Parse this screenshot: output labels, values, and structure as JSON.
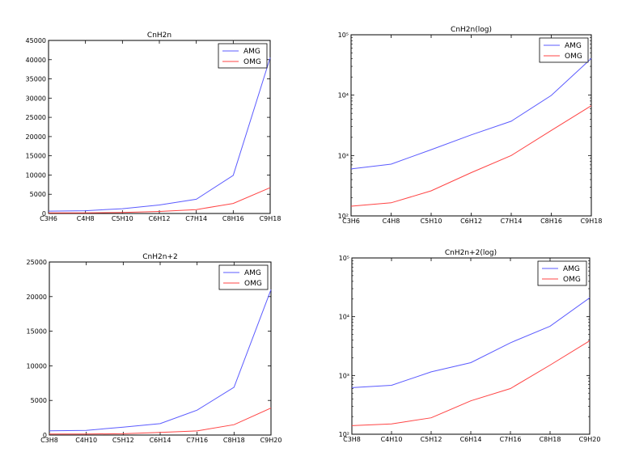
{
  "colors": {
    "AMG": "#5b5bff",
    "OMG": "#ff4444",
    "axes": "#000000",
    "background": "#ffffff"
  },
  "chart_data": [
    {
      "type": "line",
      "title": "CnH2n",
      "xlabel": "",
      "ylabel": "",
      "yscale": "linear",
      "categories": [
        "C3H6",
        "C4H8",
        "C5H10",
        "C6H12",
        "C7H14",
        "C8H16",
        "C9H18"
      ],
      "ylim": [
        0,
        45000
      ],
      "yticks": [
        0,
        5000,
        10000,
        15000,
        20000,
        25000,
        30000,
        35000,
        40000,
        45000
      ],
      "ytick_labels": [
        "0",
        "5000",
        "10000",
        "15000",
        "20000",
        "25000",
        "30000",
        "35000",
        "40000",
        "45000"
      ],
      "legend": "top-right",
      "grid": false,
      "series": [
        {
          "name": "AMG",
          "values": [
            600,
            720,
            1250,
            2200,
            3700,
            9900,
            40500
          ]
        },
        {
          "name": "OMG",
          "values": [
            145,
            165,
            260,
            520,
            1000,
            2600,
            6700
          ]
        }
      ]
    },
    {
      "type": "line",
      "title": "CnH2n(log)",
      "xlabel": "",
      "ylabel": "",
      "yscale": "log",
      "categories": [
        "C3H6",
        "C4H8",
        "C5H10",
        "C6H12",
        "C7H14",
        "C8H16",
        "C9H18"
      ],
      "ylim": [
        100,
        100000
      ],
      "yticks": [
        100,
        1000,
        10000,
        100000
      ],
      "ytick_labels": [
        "10²",
        "10³",
        "10⁴",
        "10⁵"
      ],
      "legend": "top-right",
      "grid": false,
      "series": [
        {
          "name": "AMG",
          "values": [
            600,
            720,
            1250,
            2200,
            3700,
            9900,
            40500
          ]
        },
        {
          "name": "OMG",
          "values": [
            145,
            165,
            260,
            520,
            1000,
            2600,
            6700
          ]
        }
      ]
    },
    {
      "type": "line",
      "title": "CnH2n+2",
      "xlabel": "",
      "ylabel": "",
      "yscale": "linear",
      "categories": [
        "C3H8",
        "C4H10",
        "C5H12",
        "C6H14",
        "C7H16",
        "C8H18",
        "C9H20"
      ],
      "ylim": [
        0,
        25000
      ],
      "yticks": [
        0,
        5000,
        10000,
        15000,
        20000,
        25000
      ],
      "ytick_labels": [
        "0",
        "5000",
        "10000",
        "15000",
        "20000",
        "25000"
      ],
      "legend": "top-right",
      "grid": false,
      "series": [
        {
          "name": "AMG",
          "values": [
            620,
            680,
            1150,
            1650,
            3600,
            6900,
            21000
          ]
        },
        {
          "name": "OMG",
          "values": [
            140,
            150,
            190,
            370,
            600,
            1500,
            3900
          ]
        }
      ]
    },
    {
      "type": "line",
      "title": "CnH2n+2(log)",
      "xlabel": "",
      "ylabel": "",
      "yscale": "log",
      "categories": [
        "C3H8",
        "C4H10",
        "C5H12",
        "C6H14",
        "C7H16",
        "C8H18",
        "C9H20"
      ],
      "ylim": [
        100,
        100000
      ],
      "yticks": [
        100,
        1000,
        10000,
        100000
      ],
      "ytick_labels": [
        "10²",
        "10³",
        "10⁴",
        "10⁵"
      ],
      "legend": "top-right",
      "grid": false,
      "series": [
        {
          "name": "AMG",
          "values": [
            620,
            680,
            1150,
            1650,
            3600,
            6900,
            21000
          ]
        },
        {
          "name": "OMG",
          "values": [
            140,
            150,
            190,
            370,
            600,
            1500,
            3900
          ]
        }
      ]
    }
  ]
}
